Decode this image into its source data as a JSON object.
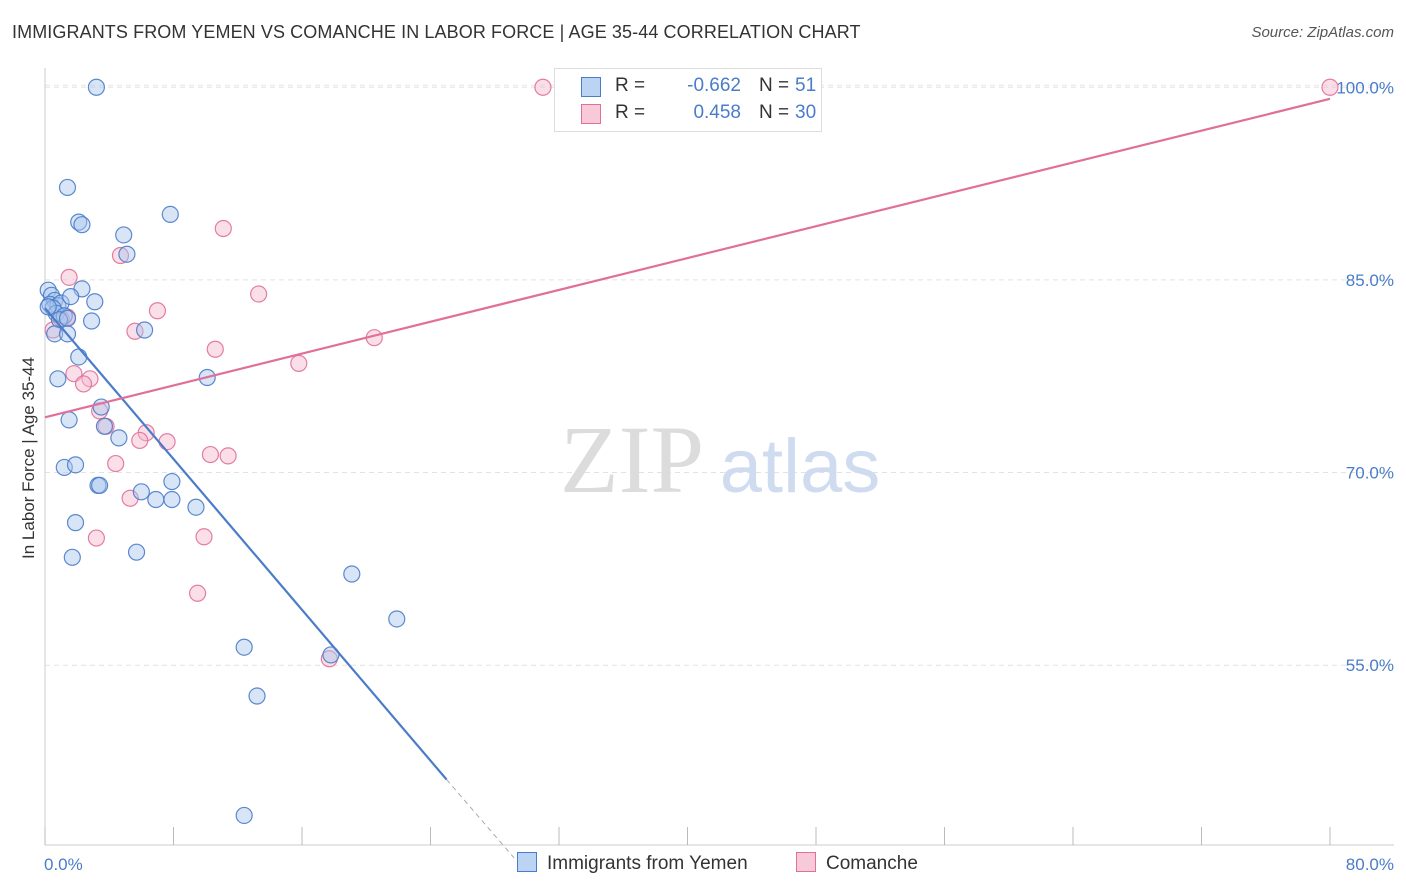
{
  "title": "IMMIGRANTS FROM YEMEN VS COMANCHE IN LABOR FORCE | AGE 35-44 CORRELATION CHART",
  "source": "Source: ZipAtlas.com",
  "watermark": {
    "zip": "ZIP",
    "atlas": "atlas"
  },
  "legend": {
    "rows": [
      {
        "r_label": "R =",
        "r_value": "-0.662",
        "n_label": "N =",
        "n_value": "51"
      },
      {
        "r_label": "R =",
        "r_value": "0.458",
        "n_label": "N =",
        "n_value": "30"
      }
    ]
  },
  "chart_data": {
    "type": "scatter",
    "title": "IMMIGRANTS FROM YEMEN VS COMANCHE IN LABOR FORCE | AGE 35-44 CORRELATION CHART",
    "xlabel": "",
    "ylabel": "In Labor Force | Age 35-44",
    "xlim": [
      0,
      80
    ],
    "ylim": [
      41,
      101.5
    ],
    "x_tick_labels": [
      "0.0%",
      "80.0%"
    ],
    "y_ticks": [
      55,
      70,
      85,
      100
    ],
    "y_tick_labels": [
      "55.0%",
      "70.0%",
      "85.0%",
      "100.0%"
    ],
    "grid": true,
    "series": [
      {
        "name": "Immigrants from Yemen",
        "color": "#4a7cc9",
        "fill": "#a9c6ee",
        "R": -0.662,
        "N": 51,
        "trend": {
          "x0": 0,
          "y0": 82.8,
          "x1": 25,
          "y1": 46.1,
          "dash_to_x": 29.2,
          "dash_to_y": 40.0
        },
        "points": [
          [
            3.2,
            100.0
          ],
          [
            1.4,
            92.2
          ],
          [
            2.1,
            89.5
          ],
          [
            2.3,
            89.3
          ],
          [
            7.8,
            90.1
          ],
          [
            4.9,
            88.5
          ],
          [
            5.1,
            87.0
          ],
          [
            0.2,
            84.2
          ],
          [
            0.4,
            83.8
          ],
          [
            0.6,
            83.4
          ],
          [
            0.3,
            83.1
          ],
          [
            0.8,
            83.0
          ],
          [
            1.0,
            83.2
          ],
          [
            0.5,
            82.8
          ],
          [
            0.7,
            82.4
          ],
          [
            1.2,
            82.2
          ],
          [
            2.3,
            84.3
          ],
          [
            1.6,
            83.7
          ],
          [
            3.1,
            83.3
          ],
          [
            0.9,
            81.9
          ],
          [
            1.4,
            82.0
          ],
          [
            2.9,
            81.8
          ],
          [
            0.6,
            80.8
          ],
          [
            1.4,
            80.8
          ],
          [
            6.2,
            81.1
          ],
          [
            2.1,
            79.0
          ],
          [
            10.1,
            77.4
          ],
          [
            0.8,
            77.3
          ],
          [
            3.5,
            75.1
          ],
          [
            1.5,
            74.1
          ],
          [
            3.7,
            73.6
          ],
          [
            4.6,
            72.7
          ],
          [
            1.2,
            70.4
          ],
          [
            1.9,
            70.6
          ],
          [
            3.3,
            69.0
          ],
          [
            3.4,
            69.0
          ],
          [
            6.0,
            68.5
          ],
          [
            7.9,
            69.3
          ],
          [
            6.9,
            67.9
          ],
          [
            7.9,
            67.9
          ],
          [
            9.4,
            67.3
          ],
          [
            1.9,
            66.1
          ],
          [
            5.7,
            63.8
          ],
          [
            1.7,
            63.4
          ],
          [
            19.1,
            62.1
          ],
          [
            21.9,
            58.6
          ],
          [
            12.4,
            56.4
          ],
          [
            17.8,
            55.8
          ],
          [
            13.2,
            52.6
          ],
          [
            12.4,
            43.3
          ],
          [
            0.2,
            82.9
          ]
        ]
      },
      {
        "name": "Comanche",
        "color": "#e0709a",
        "fill": "#f5b8cd",
        "R": 0.458,
        "N": 30,
        "trend": {
          "x0": 0,
          "y0": 74.3,
          "x1": 80,
          "y1": 99.1
        },
        "points": [
          [
            31.0,
            100.0
          ],
          [
            80.0,
            100.0
          ],
          [
            11.1,
            89.0
          ],
          [
            4.7,
            86.9
          ],
          [
            1.5,
            85.2
          ],
          [
            13.3,
            83.9
          ],
          [
            7.0,
            82.6
          ],
          [
            1.4,
            82.1
          ],
          [
            5.6,
            81.0
          ],
          [
            0.5,
            81.1
          ],
          [
            20.5,
            80.5
          ],
          [
            10.6,
            79.6
          ],
          [
            15.8,
            78.5
          ],
          [
            1.8,
            77.7
          ],
          [
            2.8,
            77.3
          ],
          [
            2.4,
            76.9
          ],
          [
            3.4,
            74.8
          ],
          [
            3.8,
            73.6
          ],
          [
            6.3,
            73.1
          ],
          [
            5.9,
            72.5
          ],
          [
            7.6,
            72.4
          ],
          [
            10.3,
            71.4
          ],
          [
            11.4,
            71.3
          ],
          [
            4.4,
            70.7
          ],
          [
            5.3,
            68.0
          ],
          [
            3.2,
            64.9
          ],
          [
            9.9,
            65.0
          ],
          [
            9.5,
            60.6
          ],
          [
            17.7,
            55.5
          ],
          [
            1.0,
            82.0
          ]
        ]
      }
    ]
  }
}
